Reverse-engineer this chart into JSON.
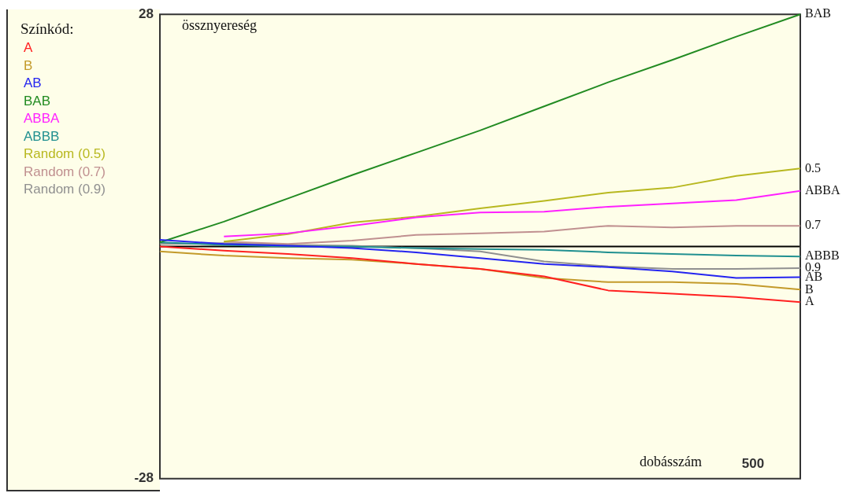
{
  "chart_data": {
    "type": "line",
    "ylabel": "össznyereség",
    "legend_title": "Színkód:",
    "legend": "left",
    "marker": "none",
    "line_style": "solid",
    "categories": [
      null,
      null,
      null,
      null,
      null,
      null,
      null,
      null,
      null,
      null,
      null
    ],
    "tick_labels": "y",
    "ylim": [
      -28,
      28
    ],
    "yticks": [
      28,
      -28
    ],
    "ref_lines": [
      {
        "axis": "y",
        "value": 0,
        "color": "#000000"
      }
    ],
    "series": [
      {
        "name": "A",
        "color": "#ff2020",
        "values": [
          0,
          -0.5,
          -0.9,
          -1.4,
          -2.1,
          -2.7,
          -3.6,
          -5.3,
          -5.7,
          -6.1,
          -6.7
        ]
      },
      {
        "name": "B",
        "color": "#c39a2a",
        "values": [
          -0.6,
          -1.1,
          -1.4,
          -1.6,
          -2.1,
          -2.7,
          -3.8,
          -4.3,
          -4.3,
          -4.5,
          -5.2
        ]
      },
      {
        "name": "AB",
        "color": "#2424f0",
        "values": [
          0.8,
          0.3,
          0.1,
          -0.2,
          -0.7,
          -1.4,
          -2.1,
          -2.5,
          -3.0,
          -3.8,
          -3.7
        ]
      },
      {
        "name": "BAB",
        "color": "#228b22",
        "values": [
          0.5,
          3,
          5.8,
          8.6,
          11.3,
          14,
          16.9,
          19.8,
          22.5,
          25.3,
          28
        ]
      },
      {
        "name": "ABBA",
        "color": "#ff20ff",
        "values": [
          null,
          1.2,
          1.6,
          2.5,
          3.5,
          4.1,
          4.2,
          4.8,
          5.2,
          5.6,
          6.7
        ]
      },
      {
        "name": "ABBB",
        "color": "#209090",
        "values": [
          0.5,
          0.2,
          0,
          0,
          -0.2,
          -0.3,
          -0.4,
          -0.7,
          -0.9,
          -1.1,
          -1.2
        ]
      },
      {
        "name": "Random (0.5)",
        "color": "#b8b820",
        "values": [
          null,
          0.6,
          1.5,
          2.9,
          3.6,
          4.6,
          5.5,
          6.5,
          7.1,
          8.5,
          9.4
        ]
      },
      {
        "name": "Random (0.7)",
        "color": "#c09090",
        "values": [
          null,
          0.6,
          0.3,
          0.7,
          1.4,
          1.6,
          1.8,
          2.5,
          2.3,
          2.5,
          2.5
        ]
      },
      {
        "name": "Random (0.9)",
        "color": "#909090",
        "values": [
          0.3,
          0.4,
          0.2,
          0.1,
          -0.2,
          -0.6,
          -1.8,
          -2.4,
          -2.7,
          -2.7,
          -2.6
        ]
      }
    ],
    "annotations": [
      "dobásszám",
      "500",
      "BAB",
      "0.5",
      "ABBA",
      "0.7",
      "ABBB",
      "0.9",
      "AB",
      "B",
      "A"
    ]
  }
}
